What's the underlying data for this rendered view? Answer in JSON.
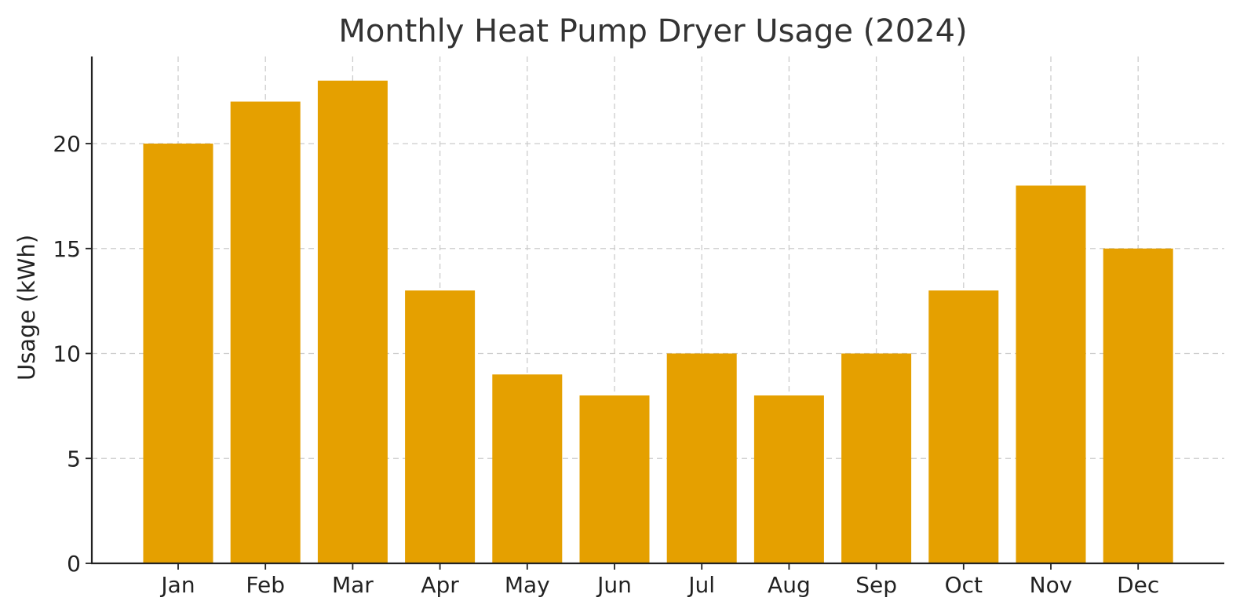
{
  "chart_data": {
    "type": "bar",
    "title": "Monthly Heat Pump Dryer Usage (2024)",
    "xlabel": "",
    "ylabel": "Usage (kWh)",
    "categories": [
      "Jan",
      "Feb",
      "Mar",
      "Apr",
      "May",
      "Jun",
      "Jul",
      "Aug",
      "Sep",
      "Oct",
      "Nov",
      "Dec"
    ],
    "values": [
      20,
      22,
      23,
      13,
      9,
      8,
      10,
      8,
      10,
      13,
      18,
      15
    ],
    "ylim": [
      0,
      24.15
    ],
    "yticks": [
      0,
      5,
      10,
      15,
      20
    ],
    "grid": true,
    "legend": "none",
    "bar_color": "#E5A000"
  }
}
